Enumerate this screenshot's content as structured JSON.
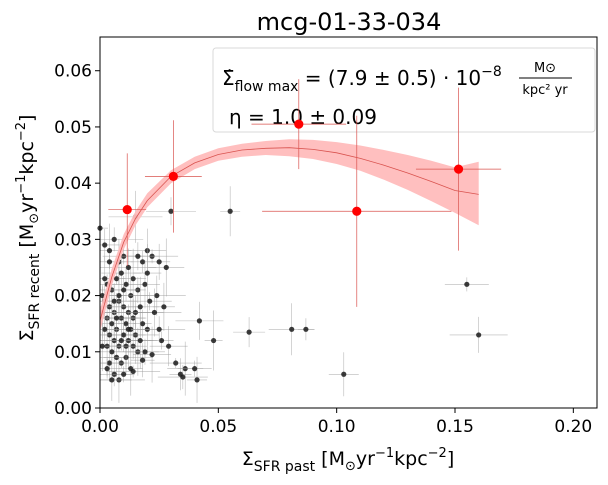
{
  "chart_data": {
    "type": "scatter",
    "title": "mcg-01-33-034",
    "xlabel": {
      "base": "Σ",
      "sub": "SFR past",
      "units_open": "  [M",
      "units_sun": "⊙",
      "units_mid": "yr",
      "exp1": "−1",
      "units_mid2": "kpc",
      "exp2": "−2",
      "units_close": "]"
    },
    "ylabel": {
      "base": "Σ",
      "sub": "SFR recent",
      "units_open": "  [M",
      "units_sun": "⊙",
      "units_mid": "yr",
      "exp1": "−1",
      "units_mid2": "kpc",
      "exp2": "−2",
      "units_close": "]"
    },
    "xlim": [
      0.0,
      0.21
    ],
    "ylim": [
      0.0,
      0.066
    ],
    "xticks": [
      0.0,
      0.05,
      0.1,
      0.15,
      0.2
    ],
    "xtick_labels": [
      "0.00",
      "0.05",
      "0.10",
      "0.15",
      "0.20"
    ],
    "yticks": [
      0.0,
      0.01,
      0.02,
      0.03,
      0.04,
      0.05,
      0.06
    ],
    "ytick_labels": [
      "0.00",
      "0.01",
      "0.02",
      "0.03",
      "0.04",
      "0.05",
      "0.06"
    ],
    "annotations": {
      "flow": {
        "lhs": "Σ̇",
        "sub": "flow max",
        "eq": " = (7.9 ± 0.5) · 10",
        "exp": "−8",
        "frac_num": "M⊙",
        "frac_den": "kpc² yr"
      },
      "eta": "η = 1.0 ± 0.09"
    },
    "model_band": {
      "x": [
        0.0,
        0.005,
        0.01,
        0.015,
        0.02,
        0.03,
        0.04,
        0.05,
        0.06,
        0.07,
        0.08,
        0.09,
        0.1,
        0.11,
        0.12,
        0.13,
        0.14,
        0.15,
        0.16
      ],
      "lower": [
        0.0135,
        0.0218,
        0.0282,
        0.0325,
        0.0357,
        0.04,
        0.0425,
        0.044,
        0.0447,
        0.045,
        0.0448,
        0.0443,
        0.0434,
        0.0422,
        0.0406,
        0.0388,
        0.0368,
        0.0347,
        0.0325
      ],
      "upper": [
        0.0175,
        0.0248,
        0.0309,
        0.035,
        0.0382,
        0.0423,
        0.0447,
        0.0462,
        0.047,
        0.0475,
        0.0478,
        0.0477,
        0.0473,
        0.0467,
        0.0459,
        0.045,
        0.044,
        0.0428,
        0.0438
      ],
      "center": [
        0.0155,
        0.0233,
        0.0295,
        0.0337,
        0.0369,
        0.0412,
        0.0436,
        0.0451,
        0.0459,
        0.0462,
        0.0463,
        0.046,
        0.0454,
        0.0444,
        0.0432,
        0.0418,
        0.0403,
        0.0387,
        0.038
      ]
    },
    "binned_points": [
      {
        "x": 0.0115,
        "y": 0.0353,
        "xerr": 0.008,
        "yerr": 0.01
      },
      {
        "x": 0.031,
        "y": 0.0412,
        "xerr": 0.012,
        "yerr": 0.01
      },
      {
        "x": 0.084,
        "y": 0.0505,
        "xerr": 0.02,
        "yerr": 0.008
      },
      {
        "x": 0.1085,
        "y": 0.035,
        "xerr": 0.04,
        "yerr": 0.017
      },
      {
        "x": 0.1515,
        "y": 0.0425,
        "xerr": 0.018,
        "yerr": 0.0145
      }
    ],
    "raw_points": [
      {
        "x": 0.0,
        "y": 0.032
      },
      {
        "x": 0.002,
        "y": 0.029
      },
      {
        "x": 0.004,
        "y": 0.028
      },
      {
        "x": 0.006,
        "y": 0.03
      },
      {
        "x": 0.008,
        "y": 0.026
      },
      {
        "x": 0.01,
        "y": 0.027
      },
      {
        "x": 0.012,
        "y": 0.025
      },
      {
        "x": 0.014,
        "y": 0.023
      },
      {
        "x": 0.009,
        "y": 0.024
      },
      {
        "x": 0.015,
        "y": 0.034
      },
      {
        "x": 0.018,
        "y": 0.026
      },
      {
        "x": 0.02,
        "y": 0.028
      },
      {
        "x": 0.022,
        "y": 0.027
      },
      {
        "x": 0.025,
        "y": 0.026
      },
      {
        "x": 0.028,
        "y": 0.025
      },
      {
        "x": 0.03,
        "y": 0.035
      },
      {
        "x": 0.055,
        "y": 0.035
      },
      {
        "x": 0.003,
        "y": 0.022
      },
      {
        "x": 0.005,
        "y": 0.021
      },
      {
        "x": 0.007,
        "y": 0.023
      },
      {
        "x": 0.011,
        "y": 0.022
      },
      {
        "x": 0.013,
        "y": 0.02
      },
      {
        "x": 0.016,
        "y": 0.021
      },
      {
        "x": 0.019,
        "y": 0.022
      },
      {
        "x": 0.021,
        "y": 0.019
      },
      {
        "x": 0.024,
        "y": 0.02
      },
      {
        "x": 0.002,
        "y": 0.019
      },
      {
        "x": 0.004,
        "y": 0.018
      },
      {
        "x": 0.006,
        "y": 0.017
      },
      {
        "x": 0.008,
        "y": 0.019
      },
      {
        "x": 0.01,
        "y": 0.018
      },
      {
        "x": 0.012,
        "y": 0.017
      },
      {
        "x": 0.014,
        "y": 0.016
      },
      {
        "x": 0.017,
        "y": 0.018
      },
      {
        "x": 0.003,
        "y": 0.016
      },
      {
        "x": 0.005,
        "y": 0.015
      },
      {
        "x": 0.007,
        "y": 0.014
      },
      {
        "x": 0.009,
        "y": 0.016
      },
      {
        "x": 0.011,
        "y": 0.015
      },
      {
        "x": 0.013,
        "y": 0.014
      },
      {
        "x": 0.015,
        "y": 0.013
      },
      {
        "x": 0.018,
        "y": 0.015
      },
      {
        "x": 0.02,
        "y": 0.014
      },
      {
        "x": 0.004,
        "y": 0.013
      },
      {
        "x": 0.006,
        "y": 0.012
      },
      {
        "x": 0.008,
        "y": 0.011
      },
      {
        "x": 0.01,
        "y": 0.013
      },
      {
        "x": 0.012,
        "y": 0.012
      },
      {
        "x": 0.014,
        "y": 0.011
      },
      {
        "x": 0.016,
        "y": 0.01
      },
      {
        "x": 0.005,
        "y": 0.01
      },
      {
        "x": 0.007,
        "y": 0.009
      },
      {
        "x": 0.009,
        "y": 0.008
      },
      {
        "x": 0.011,
        "y": 0.009
      },
      {
        "x": 0.013,
        "y": 0.007
      },
      {
        "x": 0.006,
        "y": 0.006
      },
      {
        "x": 0.008,
        "y": 0.005
      },
      {
        "x": 0.01,
        "y": 0.006
      },
      {
        "x": 0.004,
        "y": 0.008
      },
      {
        "x": 0.003,
        "y": 0.011
      },
      {
        "x": 0.002,
        "y": 0.014
      },
      {
        "x": 0.001,
        "y": 0.017
      },
      {
        "x": 0.001,
        "y": 0.02
      },
      {
        "x": 0.002,
        "y": 0.023
      },
      {
        "x": 0.004,
        "y": 0.026
      },
      {
        "x": 0.006,
        "y": 0.019
      },
      {
        "x": 0.008,
        "y": 0.02
      },
      {
        "x": 0.01,
        "y": 0.021
      },
      {
        "x": 0.007,
        "y": 0.016
      },
      {
        "x": 0.009,
        "y": 0.012
      },
      {
        "x": 0.011,
        "y": 0.011
      },
      {
        "x": 0.012,
        "y": 0.014
      },
      {
        "x": 0.015,
        "y": 0.017
      },
      {
        "x": 0.017,
        "y": 0.012
      },
      {
        "x": 0.019,
        "y": 0.01
      },
      {
        "x": 0.023,
        "y": 0.017
      },
      {
        "x": 0.026,
        "y": 0.012
      },
      {
        "x": 0.029,
        "y": 0.011
      },
      {
        "x": 0.032,
        "y": 0.008
      },
      {
        "x": 0.034,
        "y": 0.006
      },
      {
        "x": 0.036,
        "y": 0.007
      },
      {
        "x": 0.035,
        "y": 0.0055
      },
      {
        "x": 0.041,
        "y": 0.005
      },
      {
        "x": 0.04,
        "y": 0.007
      },
      {
        "x": 0.042,
        "y": 0.0155
      },
      {
        "x": 0.048,
        "y": 0.012
      },
      {
        "x": 0.063,
        "y": 0.0135
      },
      {
        "x": 0.081,
        "y": 0.014
      },
      {
        "x": 0.087,
        "y": 0.014
      },
      {
        "x": 0.103,
        "y": 0.006
      },
      {
        "x": 0.155,
        "y": 0.022
      },
      {
        "x": 0.16,
        "y": 0.013
      },
      {
        "x": 0.02,
        "y": 0.024
      },
      {
        "x": 0.016,
        "y": 0.027
      },
      {
        "x": 0.001,
        "y": 0.011
      },
      {
        "x": 0.003,
        "y": 0.007
      },
      {
        "x": 0.005,
        "y": 0.005
      },
      {
        "x": 0.014,
        "y": 0.0065
      },
      {
        "x": 0.018,
        "y": 0.0085
      },
      {
        "x": 0.022,
        "y": 0.0095
      },
      {
        "x": 0.025,
        "y": 0.014
      },
      {
        "x": 0.027,
        "y": 0.018
      }
    ],
    "colors": {
      "band": "#ffbcbc",
      "line": "#d9534f",
      "binned": "#ff0000",
      "raw": "#1a1a1a",
      "errbar": "#9a9a9a"
    }
  }
}
